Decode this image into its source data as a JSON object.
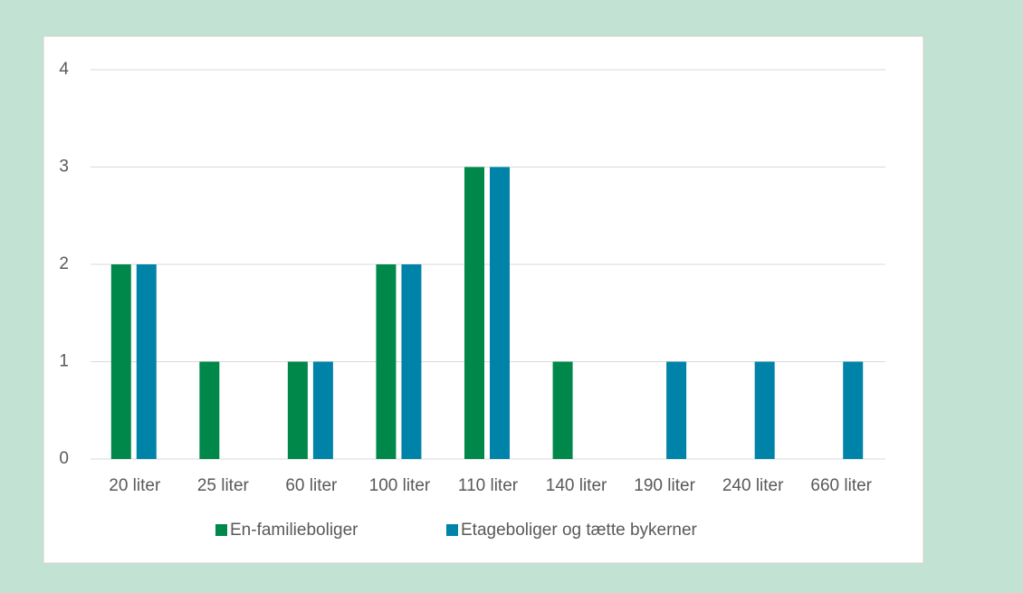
{
  "chart_data": {
    "type": "bar",
    "categories": [
      "20 liter",
      "25 liter",
      "60 liter",
      "100 liter",
      "110 liter",
      "140 liter",
      "190 liter",
      "240 liter",
      "660 liter"
    ],
    "series": [
      {
        "name": "En-familieboliger",
        "color": "#00884a",
        "values": [
          2,
          1,
          1,
          2,
          3,
          1,
          0,
          0,
          0
        ]
      },
      {
        "name": "Etageboliger og tætte bykerner",
        "color": "#0083a9",
        "values": [
          2,
          0,
          1,
          2,
          3,
          0,
          1,
          1,
          1
        ]
      }
    ],
    "ylim": [
      0,
      4
    ],
    "yticks": [
      0,
      1,
      2,
      3,
      4
    ],
    "grid": true,
    "legend": "bottom"
  }
}
